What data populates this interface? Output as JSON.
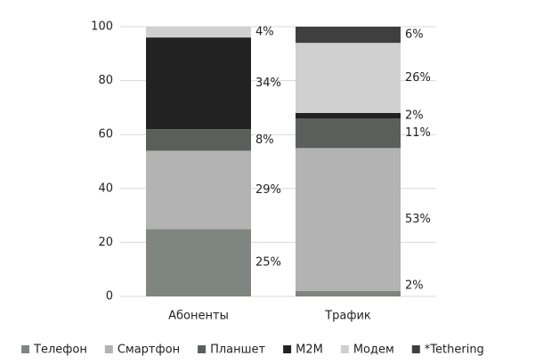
{
  "chart_data": {
    "type": "stacked_bar",
    "categories": [
      "Абоненты",
      "Трафик"
    ],
    "series": [
      {
        "name": "Телефон",
        "color": "#7f8682",
        "values": [
          25,
          2
        ],
        "value_labels": [
          "25%",
          "2%"
        ]
      },
      {
        "name": "Смартфон",
        "color": "#b3b3b3",
        "values": [
          29,
          53
        ],
        "value_labels": [
          "29%",
          "53%"
        ]
      },
      {
        "name": "Планшет",
        "color": "#5a5f5c",
        "values": [
          8,
          11
        ],
        "value_labels": [
          "8%",
          "11%"
        ]
      },
      {
        "name": "M2M",
        "color": "#222222",
        "values": [
          34,
          2
        ],
        "value_labels": [
          "34%",
          "2%"
        ]
      },
      {
        "name": "Модем",
        "color": "#d0d0d0",
        "values": [
          4,
          26
        ],
        "value_labels": [
          "4%",
          "26%"
        ]
      },
      {
        "name": "*Tethering",
        "color": "#3f3f3f",
        "values": [
          0,
          6
        ],
        "value_labels": [
          null,
          "6%"
        ]
      }
    ],
    "ylim": [
      0,
      100
    ],
    "yticks": [
      0,
      20,
      40,
      60,
      80,
      100
    ],
    "grid": true
  }
}
